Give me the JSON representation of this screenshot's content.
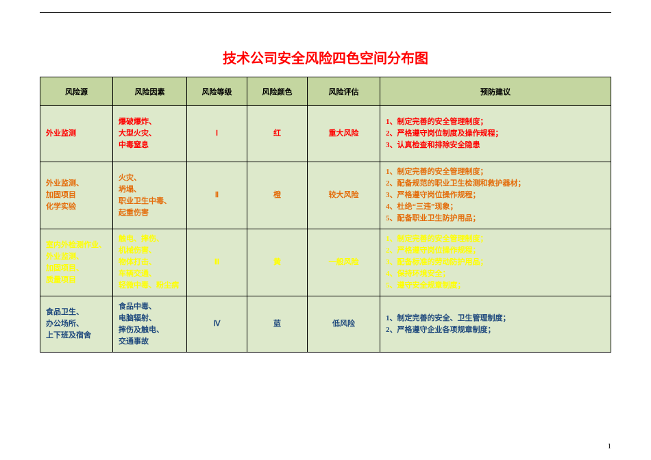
{
  "title": {
    "text": "技术公司安全风险四色空间分布图",
    "color": "#ff0000"
  },
  "page_number": "1",
  "colors": {
    "header_bg": "#c4d6a0",
    "row_bg": "#dde9cb",
    "red": "#ff0000",
    "orange": "#e46c0a",
    "yellow": "#ffff00",
    "blue": "#1f497d",
    "black": "#000000"
  },
  "columns": [
    {
      "label": "风险源"
    },
    {
      "label": "风险因素"
    },
    {
      "label": "风险等级"
    },
    {
      "label": "风险颜色"
    },
    {
      "label": "风险评估"
    },
    {
      "label": "预防建议"
    }
  ],
  "rows": [
    {
      "color_key": "red",
      "source": "外业监测",
      "factors": "爆破爆炸、\n大型火灾、\n中毒窒息",
      "level": "Ⅰ",
      "color_name": "红",
      "assessment": "重大风险",
      "advice": "1、制定完善的安全管理制度；\n2、严格遵守岗位制度及操作规程；\n3、认真检查和排除安全隐患"
    },
    {
      "color_key": "orange",
      "source": "外业监测、\n加固项目\n化学实验",
      "factors": "火灾、\n坍塌、\n职业卫生中毒、\n起重伤害",
      "level": "Ⅱ",
      "color_name": "橙",
      "assessment": "较大风险",
      "advice": "1、制定完善的安全管理制度；\n  2、配备规范的职业卫生检测和救护器材；\n3、严格遵守岗位操作规程；\n4、杜绝“三违”现象；\n5、配备职业卫生防护用品；"
    },
    {
      "color_key": "yellow",
      "source": "室内外检测作业、\n外业监测、\n加固项目、\n质量项目",
      "factors": "触电、摔伤、\n机械伤害、\n物体打击、\n车辆交通、\n轻微中毒、粉尘病",
      "level": "Ⅲ",
      "color_name": "黄",
      "assessment": "一般风险",
      "advice": "1、制定完善的安全管理制度；\n2、严格遵守岗位操作规程；\n3、配备标准的劳动防护用品；\n4、保持环境安全；\n5、遵守安全规章制度；"
    },
    {
      "color_key": "blue",
      "source": "食品卫生、\n办公场所、\n上下班及宿舍",
      "factors": "食品中毒、\n电脑辐射、\n摔伤及触电、\n交通事故",
      "level": "Ⅳ",
      "color_name": "蓝",
      "assessment": "低风险",
      "advice": "1、制定完善的安全、卫生管理制度；\n2、严格遵守企业各项规章制度；"
    }
  ]
}
